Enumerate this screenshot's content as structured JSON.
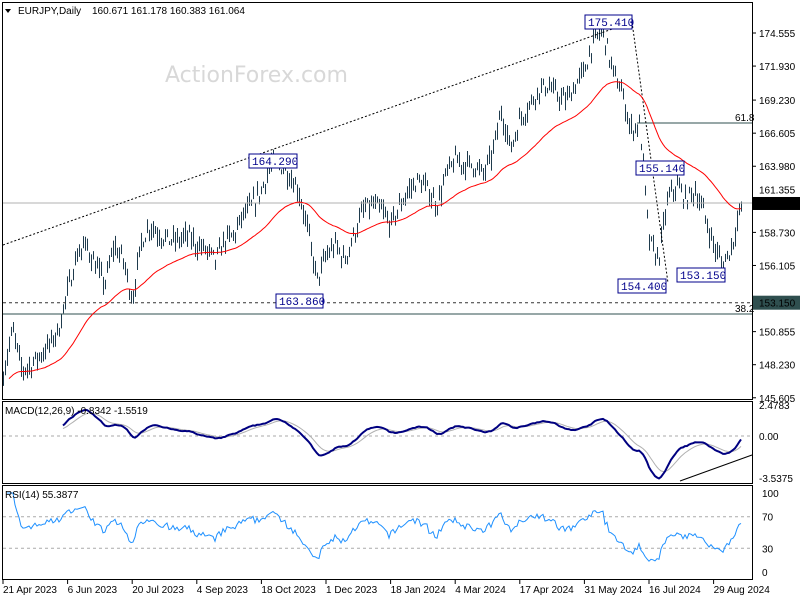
{
  "header": {
    "symbol": "EURJPY,Daily",
    "ohlc": "160.671 161.178 160.383 161.064"
  },
  "watermark": "ActionForex.com",
  "colors": {
    "bars": "#1f3b4d",
    "ma": "#ff0000",
    "macd": "#000080",
    "signal": "#b0b0b0",
    "rsi": "#1e90ff",
    "label_border": "#00008b",
    "current_price_bg": "#000000",
    "level_bg": "#2f4f4f"
  },
  "chart_data": {
    "type": "ohlc",
    "title": "EURJPY,Daily",
    "x_range": [
      "21 Apr 2023",
      "6 Sep 2024"
    ],
    "x_ticks": [
      "21 Apr 2023",
      "6 Jun 2023",
      "20 Jul 2023",
      "4 Sep 2023",
      "18 Oct 2023",
      "1 Dec 2023",
      "18 Jan 2024",
      "4 Mar 2024",
      "17 Apr 2024",
      "31 May 2024",
      "16 Jul 2024",
      "29 Aug 2024"
    ],
    "y_ticks": [
      "174.555",
      "171.930",
      "169.230",
      "166.605",
      "163.980",
      "161.355",
      "158.730",
      "156.105",
      "150.855",
      "148.230",
      "145.605"
    ],
    "ylim": [
      145.4,
      176.8
    ],
    "close_approx": [
      147.5,
      151.0,
      147.8,
      148.2,
      149.0,
      149.8,
      151.0,
      154.2,
      157.0,
      157.7,
      156.1,
      154.6,
      157.7,
      156.5,
      153.4,
      158.1,
      159.3,
      158.5,
      158.1,
      158.1,
      158.5,
      157.7,
      157.3,
      156.5,
      158.1,
      158.5,
      160.1,
      160.9,
      162.1,
      164.1,
      164.1,
      163.3,
      162.1,
      158.9,
      154.9,
      156.9,
      157.7,
      156.5,
      158.5,
      160.5,
      160.9,
      160.5,
      159.3,
      160.9,
      162.1,
      162.9,
      162.1,
      160.9,
      163.3,
      164.5,
      164.1,
      164.1,
      163.3,
      164.9,
      168.4,
      165.3,
      167.7,
      168.8,
      170.0,
      170.4,
      169.6,
      169.2,
      170.4,
      171.6,
      174.0,
      174.8,
      171.6,
      170.0,
      166.9,
      167.3,
      158.1,
      156.5,
      161.3,
      162.5,
      161.3,
      162.1,
      160.1,
      157.7,
      156.1,
      157.7,
      161.064
    ],
    "moving_average": {
      "color": "red"
    },
    "annotations": {
      "swing_labels": [
        "175.410",
        "164.290",
        "163.860",
        "155.140",
        "154.400",
        "153.150"
      ],
      "current_price": "161.064",
      "level_price": "153.150",
      "fib_high": "61.8",
      "fib_low": "38.2"
    },
    "macd": {
      "label": "MACD(12,26,9) -0.8342 -1.5519",
      "y_ticks": [
        "2.4783",
        "0.00",
        "-3.5375"
      ]
    },
    "rsi": {
      "label": "RSI(14) 55.3877",
      "y_ticks": [
        "100",
        "70",
        "30",
        "0"
      ]
    }
  }
}
